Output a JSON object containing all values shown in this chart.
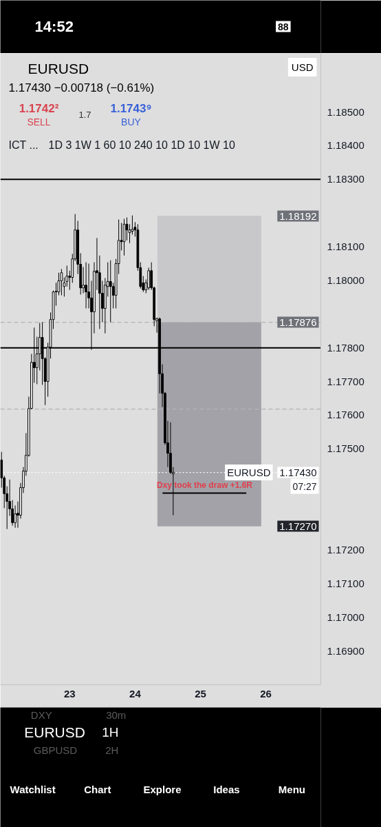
{
  "chart_data": {
    "type": "candlestick",
    "title": "EURUSD",
    "subtitle": "1.17430 −0.00718 (−0.61%)",
    "color": "#000000",
    "x": [
      21.958,
      22.0,
      22.042,
      22.083,
      22.125,
      22.167,
      22.208,
      22.25,
      22.292,
      22.333,
      22.375,
      22.417,
      22.458,
      22.5,
      22.542,
      22.583,
      22.625,
      22.667,
      22.708,
      22.75,
      22.792,
      22.833,
      22.875,
      22.917,
      22.958,
      23,
      23.042,
      23.083,
      23.125,
      23.167,
      23.208,
      23.25,
      23.292,
      23.333,
      23.375,
      23.417,
      23.458,
      23.5,
      23.542,
      23.583,
      23.625,
      23.667,
      23.708,
      23.75,
      23.792,
      23.833,
      23.875,
      23.917,
      23.958,
      24,
      24.042,
      24.083,
      24.125,
      24.167,
      24.208,
      24.25,
      24.292,
      24.333,
      24.375,
      24.417,
      24.458,
      24.5,
      24.542,
      24.583
    ],
    "ohlc": [
      [
        1.17467,
        1.17491,
        1.17385,
        1.17414
      ],
      [
        1.17414,
        1.1742,
        1.17324,
        1.17367
      ],
      [
        1.17367,
        1.17389,
        1.17262,
        1.17344
      ],
      [
        1.17344,
        1.17409,
        1.17301,
        1.17322
      ],
      [
        1.17322,
        1.17348,
        1.17272,
        1.17281
      ],
      [
        1.17281,
        1.17332,
        1.17266,
        1.17307
      ],
      [
        1.17309,
        1.17344,
        1.17266,
        1.17303
      ],
      [
        1.17303,
        1.17399,
        1.17293,
        1.17385
      ],
      [
        1.17385,
        1.17446,
        1.17369,
        1.17434
      ],
      [
        1.17434,
        1.17547,
        1.1742,
        1.17481
      ],
      [
        1.17481,
        1.17655,
        1.17477,
        1.1762
      ],
      [
        1.1762,
        1.17782,
        1.17618,
        1.17757
      ],
      [
        1.17757,
        1.1786,
        1.17696,
        1.17741
      ],
      [
        1.17741,
        1.17833,
        1.17692,
        1.17782
      ],
      [
        1.17782,
        1.17874,
        1.17733,
        1.17831
      ],
      [
        1.17831,
        1.17876,
        1.1769,
        1.17768
      ],
      [
        1.17768,
        1.17772,
        1.1763,
        1.177
      ],
      [
        1.177,
        1.17815,
        1.17655,
        1.17802
      ],
      [
        1.17802,
        1.17905,
        1.17768,
        1.17884
      ],
      [
        1.17884,
        1.1797,
        1.17856,
        1.17966
      ],
      [
        1.17966,
        1.17993,
        1.17925,
        1.17968
      ],
      [
        1.17966,
        1.18023,
        1.17956,
        1.17999
      ],
      [
        1.17999,
        1.18034,
        1.17956,
        1.18023
      ],
      [
        1.17982,
        1.18009,
        1.17952,
        1.17993
      ],
      [
        1.17997,
        1.18044,
        1.17982,
        1.18013
      ],
      [
        1.18013,
        1.18029,
        1.17972,
        1.18009
      ],
      [
        1.18009,
        1.18079,
        1.17993,
        1.18064
      ],
      [
        1.18064,
        1.18197,
        1.18058,
        1.1815
      ],
      [
        1.1815,
        1.18177,
        1.18019,
        1.18048
      ],
      [
        1.18048,
        1.18081,
        1.17958,
        1.17978
      ],
      [
        1.17978,
        1.1804,
        1.17962,
        1.17986
      ],
      [
        1.17986,
        1.18054,
        1.17917,
        1.17966
      ],
      [
        1.17966,
        1.1805,
        1.17917,
        1.17948
      ],
      [
        1.17948,
        1.17999,
        1.17794,
        1.17907
      ],
      [
        1.17907,
        1.18054,
        1.17843,
        1.18027
      ],
      [
        1.18029,
        1.18126,
        1.17972,
        1.18023
      ],
      [
        1.18023,
        1.18074,
        1.17856,
        1.17962
      ],
      [
        1.17962,
        1.17999,
        1.17876,
        1.17917
      ],
      [
        1.17917,
        1.18007,
        1.17843,
        1.17986
      ],
      [
        1.17982,
        1.18054,
        1.17952,
        1.17997
      ],
      [
        1.17997,
        1.1806,
        1.17876,
        1.17982
      ],
      [
        1.17982,
        1.17993,
        1.17917,
        1.17956
      ],
      [
        1.17956,
        1.18064,
        1.17917,
        1.1805
      ],
      [
        1.1805,
        1.18181,
        1.18019,
        1.18119
      ],
      [
        1.18119,
        1.18171,
        1.18089,
        1.18115
      ],
      [
        1.18115,
        1.18183,
        1.18074,
        1.18167
      ],
      [
        1.18167,
        1.18187,
        1.18119,
        1.1815
      ],
      [
        1.18142,
        1.18167,
        1.18111,
        1.1815
      ],
      [
        1.18146,
        1.18193,
        1.18136,
        1.18152
      ],
      [
        1.18158,
        1.18173,
        1.1813,
        1.1815
      ],
      [
        1.1815,
        1.18167,
        1.18029,
        1.18038
      ],
      [
        1.18038,
        1.18054,
        1.17976,
        1.17982
      ],
      [
        1.17993,
        1.18013,
        1.17966,
        1.17972
      ],
      [
        1.17972,
        1.18003,
        1.17962,
        1.17993
      ],
      [
        1.17978,
        1.18038,
        1.17972,
        1.18029
      ],
      [
        1.18029,
        1.18054,
        1.17972,
        1.17978
      ],
      [
        1.17978,
        1.17982,
        1.17864,
        1.17884
      ],
      [
        1.1788,
        1.1789,
        1.17845,
        1.17886
      ],
      [
        1.17886,
        1.1789,
        1.17665,
        1.17723
      ],
      [
        1.17723,
        1.17751,
        1.17624,
        1.17665
      ],
      [
        1.17665,
        1.17669,
        1.17512,
        1.17518
      ],
      [
        1.17518,
        1.17583,
        1.17446,
        1.17487
      ],
      [
        1.17487,
        1.17579,
        1.17426,
        1.1743
      ],
      [
        1.17426,
        1.17446,
        1.17303,
        1.1743
      ]
    ],
    "series": [
      {
        "type": "bar",
        "x": [
          25.135
        ],
        "base": [
          1.17876
        ],
        "values": [
          0.00316
        ],
        "color": "#c8c8cb"
      },
      {
        "type": "bar",
        "x": [
          25.135
        ],
        "base": [
          1.1727
        ],
        "values": [
          0.00606
        ],
        "color": "#a2a2a8"
      },
      {
        "type": "line",
        "x": [
          24.42,
          25.7
        ],
        "values": [
          1.17369,
          1.17369
        ],
        "color": "#000000"
      }
    ],
    "xlim": [
      21.94,
      26.84
    ],
    "xticks": [
      23,
      24,
      25,
      26
    ],
    "ylim": [
      1.168,
      1.18674
    ],
    "yticks": [
      {
        "value": 1.169,
        "label": "1.16900"
      },
      {
        "value": 1.17,
        "label": "1.17000"
      },
      {
        "value": 1.171,
        "label": "1.17100"
      },
      {
        "value": 1.172,
        "label": "1.17200"
      },
      {
        "value": 1.175,
        "label": "1.17500"
      },
      {
        "value": 1.176,
        "label": "1.17600"
      },
      {
        "value": 1.177,
        "label": "1.17700"
      },
      {
        "value": 1.178,
        "label": "1.17800"
      },
      {
        "value": 1.18,
        "label": "1.18000"
      },
      {
        "value": 1.181,
        "label": "1.18100"
      },
      {
        "value": 1.183,
        "label": "1.18300"
      },
      {
        "value": 1.184,
        "label": "1.18400"
      },
      {
        "value": 1.185,
        "label": "1.18500"
      }
    ],
    "ref_lines": [
      {
        "axis": "y",
        "value": 1.183,
        "color": "#000000",
        "line_style": "solid"
      },
      {
        "axis": "y",
        "value": 1.17876,
        "color": "#b2b2b6",
        "line_style": "dashed"
      },
      {
        "axis": "y",
        "value": 1.178,
        "color": "#000000",
        "line_style": "solid"
      },
      {
        "axis": "y",
        "value": 1.17618,
        "color": "#b2b2b6",
        "line_style": "dashed"
      },
      {
        "axis": "y",
        "value": 1.1743,
        "label": "EURUSD",
        "color": "#ffffff",
        "line_style": "dotted"
      }
    ],
    "annotations": [
      "14:52",
      "88",
      "1.1742²",
      "SELL",
      "1.7",
      "1.1743⁹",
      "BUY",
      "USD",
      "ICT ...",
      "1D 3 1W 1 60 10 240 10 1D 10 1W 10",
      "1.18192",
      {
        "text": "1.17876",
        "y": 1.17876
      },
      {
        "text": "1.17430",
        "y": 1.1743
      },
      "07:27",
      "1.17270",
      "Dxy took the draw +1.6R",
      "DXY",
      "30m",
      "EURUSD",
      "1H",
      "GBPUSD",
      "2H",
      "Watchlist",
      "Chart",
      "Explore",
      "Ideas",
      "Menu"
    ]
  }
}
